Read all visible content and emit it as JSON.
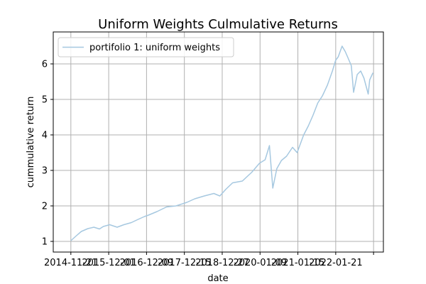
{
  "chart_data": {
    "type": "line",
    "title": "Uniform Weights Culmulative Returns",
    "xlabel": "date",
    "ylabel": "cummulative return",
    "x_tick_labels": [
      "2014-11-21",
      "2015-12-01",
      "2016-12-09",
      "2017-12-15",
      "2018-12-27",
      "2020-01-09",
      "2021-01-15",
      "2022-01-21",
      ""
    ],
    "y_tick_labels": [
      "1",
      "2",
      "3",
      "4",
      "5",
      "6"
    ],
    "y_ticks": [
      1,
      2,
      3,
      4,
      5,
      6
    ],
    "xlim": [
      "2014-06-04",
      "2023-02-24"
    ],
    "ylim": [
      0.7,
      6.9
    ],
    "grid": true,
    "legend_position": "top-left",
    "series": [
      {
        "name": "portifolio 1: uniform weights",
        "color": "#a6c8e0",
        "x": [
          "2014-11-21",
          "2015-01-09",
          "2015-03-02",
          "2015-05-04",
          "2015-07-01",
          "2015-08-24",
          "2015-09-30",
          "2015-12-01",
          "2016-02-11",
          "2016-04-15",
          "2016-06-27",
          "2016-08-31",
          "2016-10-31",
          "2016-12-09",
          "2017-03-01",
          "2017-06-01",
          "2017-09-01",
          "2017-12-15",
          "2018-03-01",
          "2018-06-01",
          "2018-09-01",
          "2018-10-29",
          "2018-12-27",
          "2019-03-01",
          "2019-06-03",
          "2019-09-03",
          "2019-11-15",
          "2020-01-09",
          "2020-02-20",
          "2020-03-23",
          "2020-05-01",
          "2020-06-15",
          "2020-08-03",
          "2020-09-30",
          "2020-11-13",
          "2021-01-15",
          "2021-03-01",
          "2021-04-15",
          "2021-06-01",
          "2021-07-15",
          "2021-09-01",
          "2021-10-20",
          "2021-11-20",
          "2021-12-15",
          "2022-01-21",
          "2022-02-20",
          "2022-03-15",
          "2022-04-20",
          "2022-05-12",
          "2022-06-16",
          "2022-07-20",
          "2022-08-20",
          "2022-09-30",
          "2022-10-15",
          "2022-11-15"
        ],
        "y": [
          1.02,
          1.15,
          1.28,
          1.36,
          1.4,
          1.35,
          1.42,
          1.47,
          1.4,
          1.47,
          1.53,
          1.62,
          1.7,
          1.74,
          1.84,
          1.97,
          2.0,
          2.1,
          2.2,
          2.28,
          2.35,
          2.28,
          2.47,
          2.65,
          2.7,
          2.95,
          3.2,
          3.3,
          3.7,
          2.5,
          3.05,
          3.28,
          3.4,
          3.65,
          3.5,
          4.0,
          4.25,
          4.55,
          4.9,
          5.1,
          5.4,
          5.8,
          6.1,
          6.2,
          6.5,
          6.35,
          6.2,
          5.95,
          5.2,
          5.7,
          5.8,
          5.6,
          5.15,
          5.55,
          5.75
        ]
      }
    ]
  }
}
